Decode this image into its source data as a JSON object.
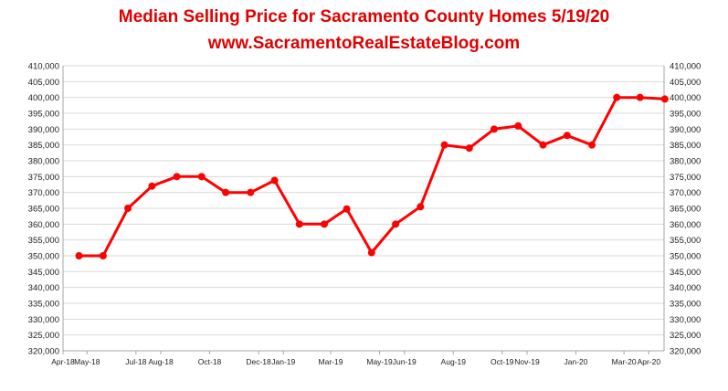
{
  "chart_data": {
    "type": "line",
    "title": "Median Selling Price for Sacramento County Homes 5/19/20",
    "subtitle": "www.SacramentoRealEstateBlog.com",
    "xlabel": "",
    "ylabel": "",
    "ylim": [
      320000,
      410000
    ],
    "ytick_step": 5000,
    "y_tick_labels": [
      "320,000",
      "325,000",
      "330,000",
      "335,000",
      "340,000",
      "345,000",
      "350,000",
      "355,000",
      "360,000",
      "365,000",
      "370,000",
      "375,000",
      "380,000",
      "385,000",
      "390,000",
      "395,000",
      "400,000",
      "405,000",
      "410,000"
    ],
    "x_tick_labels": [
      "Apr-18",
      "May-18",
      "Jul-18",
      "Aug-18",
      "Oct-18",
      "Dec-18",
      "Jan-19",
      "Mar-19",
      "May-19",
      "Jun-19",
      "Aug-19",
      "Oct-19",
      "Nov-19",
      "Jan-20",
      "Mar-20",
      "Apr-20"
    ],
    "x_tick_dates": [
      "2018-04-01",
      "2018-05-01",
      "2018-07-01",
      "2018-08-01",
      "2018-10-01",
      "2018-12-01",
      "2019-01-01",
      "2019-03-01",
      "2019-05-01",
      "2019-06-01",
      "2019-08-01",
      "2019-10-01",
      "2019-11-01",
      "2020-01-01",
      "2020-03-01",
      "2020-04-01"
    ],
    "x_range": [
      "2018-04-01",
      "2020-04-20"
    ],
    "grid": true,
    "legend": "none",
    "series_color": "#ff0000",
    "series": [
      {
        "x": [
          "2018-04-21",
          "2018-05-21",
          "2018-06-21",
          "2018-07-21",
          "2018-08-21",
          "2018-09-21",
          "2018-10-21",
          "2018-11-21",
          "2018-12-21",
          "2019-01-21",
          "2019-02-21",
          "2019-03-21",
          "2019-04-21",
          "2019-05-21",
          "2019-06-21",
          "2019-07-21",
          "2019-08-21",
          "2019-09-21",
          "2019-10-21",
          "2019-11-21",
          "2019-12-21",
          "2020-01-21",
          "2020-02-21",
          "2020-03-21",
          "2020-04-21"
        ],
        "values": [
          350000,
          350000,
          365000,
          372000,
          375000,
          375000,
          370000,
          370000,
          373800,
          360000,
          360000,
          364800,
          351000,
          360000,
          365500,
          385000,
          384000,
          390000,
          391000,
          385000,
          388000,
          385000,
          400000,
          400000,
          399500
        ]
      }
    ]
  }
}
